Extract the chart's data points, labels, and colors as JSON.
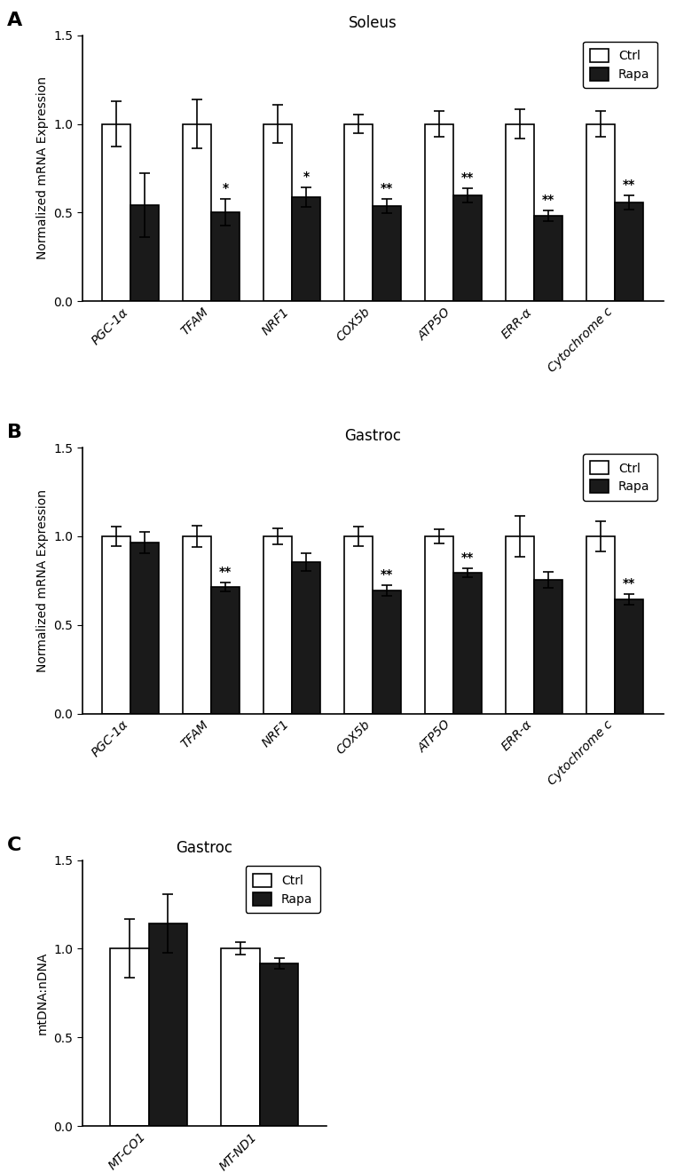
{
  "panel_A": {
    "title": "Soleus",
    "ylabel": "Normalized mRNA Expression",
    "categories": [
      "PGC-1α",
      "TFAM",
      "NRF1",
      "COX5b",
      "ATP5O",
      "ERR-α",
      "Cytochrome c"
    ],
    "ctrl_vals": [
      1.0,
      1.0,
      1.0,
      1.0,
      1.0,
      1.0,
      1.0
    ],
    "rapa_vals": [
      0.54,
      0.5,
      0.585,
      0.535,
      0.595,
      0.48,
      0.555
    ],
    "ctrl_err": [
      0.13,
      0.14,
      0.11,
      0.055,
      0.075,
      0.085,
      0.075
    ],
    "rapa_err": [
      0.18,
      0.075,
      0.055,
      0.04,
      0.04,
      0.03,
      0.04
    ],
    "sig": [
      "",
      "*",
      "*",
      "**",
      "**",
      "**",
      "**"
    ],
    "ylim": [
      0,
      1.5
    ],
    "yticks": [
      0.0,
      0.5,
      1.0,
      1.5
    ]
  },
  "panel_B": {
    "title": "Gastroc",
    "ylabel": "Normalized mRNA Expression",
    "categories": [
      "PGC-1α",
      "TFAM",
      "NRF1",
      "COX5b",
      "ATP5O",
      "ERR-α",
      "Cytochrome c"
    ],
    "ctrl_vals": [
      1.0,
      1.0,
      1.0,
      1.0,
      1.0,
      1.0,
      1.0
    ],
    "rapa_vals": [
      0.965,
      0.715,
      0.855,
      0.695,
      0.795,
      0.755,
      0.645
    ],
    "ctrl_err": [
      0.055,
      0.06,
      0.045,
      0.055,
      0.04,
      0.115,
      0.085
    ],
    "rapa_err": [
      0.06,
      0.025,
      0.05,
      0.03,
      0.025,
      0.045,
      0.03
    ],
    "sig": [
      "",
      "**",
      "",
      "**",
      "**",
      "",
      "**"
    ],
    "ylim": [
      0,
      1.5
    ],
    "yticks": [
      0.0,
      0.5,
      1.0,
      1.5
    ]
  },
  "panel_C": {
    "title": "Gastroc",
    "ylabel": "mtDNA:nDNA",
    "categories": [
      "MT-CO1",
      "MT-ND1"
    ],
    "ctrl_vals": [
      1.0,
      1.0
    ],
    "rapa_vals": [
      1.14,
      0.915
    ],
    "ctrl_err": [
      0.165,
      0.035
    ],
    "rapa_err": [
      0.165,
      0.03
    ],
    "sig": [
      "",
      ""
    ],
    "ylim": [
      0,
      1.5
    ],
    "yticks": [
      0.0,
      0.5,
      1.0,
      1.5
    ]
  },
  "bar_width": 0.35,
  "ctrl_color": "#ffffff",
  "rapa_color": "#1a1a1a",
  "edge_color": "#000000",
  "label_fontsize": 10,
  "title_fontsize": 12,
  "tick_fontsize": 10,
  "sig_fontsize": 10,
  "panel_label_fontsize": 16
}
